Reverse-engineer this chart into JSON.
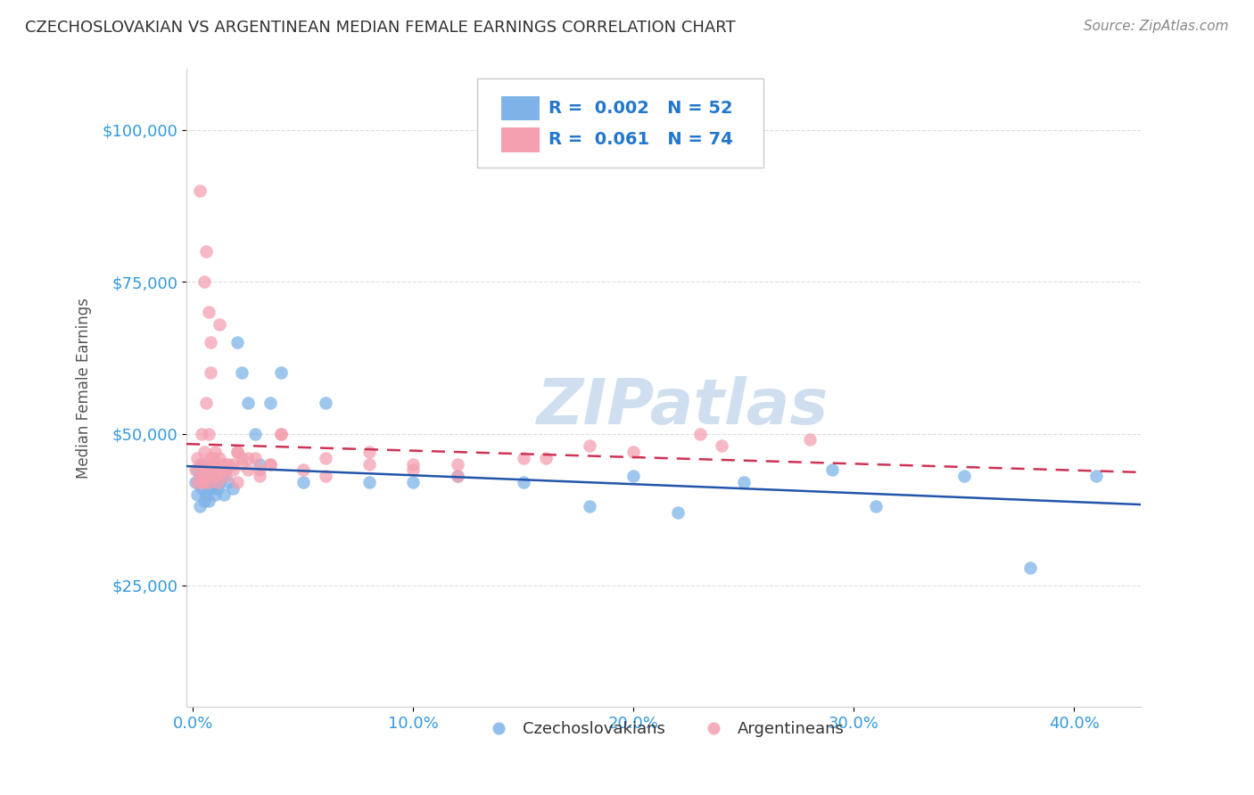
{
  "title": "CZECHOSLOVAKIAN VS ARGENTINEAN MEDIAN FEMALE EARNINGS CORRELATION CHART",
  "source": "Source: ZipAtlas.com",
  "ylabel": "Median Female Earnings",
  "ytick_labels": [
    "$25,000",
    "$50,000",
    "$75,000",
    "$100,000"
  ],
  "ytick_vals": [
    25000,
    50000,
    75000,
    100000
  ],
  "xlabel_ticks": [
    "0.0%",
    "10.0%",
    "20.0%",
    "30.0%",
    "40.0%"
  ],
  "xlabel_vals": [
    0.0,
    0.1,
    0.2,
    0.3,
    0.4
  ],
  "ylim": [
    5000,
    110000
  ],
  "xlim": [
    -0.003,
    0.43
  ],
  "legend1_r": "0.002",
  "legend1_n": "52",
  "legend2_r": "0.061",
  "legend2_n": "74",
  "blue_color": "#7fb3e8",
  "pink_color": "#f4a0b0",
  "blue_line_color": "#2255aa",
  "pink_line_color": "#cc3355",
  "title_color": "#333333",
  "axis_label_color": "#555555",
  "tick_color": "#3399dd",
  "watermark": "ZIPatlas",
  "watermark_color": "#d0dff0",
  "background_color": "#ffffff",
  "grid_color": "#dddddd",
  "legend_color": "#2277cc",
  "czechs_x": [
    0.001,
    0.002,
    0.002,
    0.003,
    0.003,
    0.004,
    0.004,
    0.005,
    0.005,
    0.005,
    0.006,
    0.006,
    0.006,
    0.007,
    0.007,
    0.007,
    0.008,
    0.008,
    0.009,
    0.009,
    0.01,
    0.01,
    0.011,
    0.011,
    0.012,
    0.013,
    0.014,
    0.015,
    0.016,
    0.018,
    0.02,
    0.022,
    0.025,
    0.028,
    0.03,
    0.035,
    0.04,
    0.05,
    0.06,
    0.08,
    0.1,
    0.12,
    0.15,
    0.18,
    0.2,
    0.22,
    0.25,
    0.29,
    0.31,
    0.35,
    0.38,
    0.41
  ],
  "czechs_y": [
    42000,
    44000,
    40000,
    43000,
    38000,
    45000,
    41000,
    42000,
    39000,
    43000,
    44000,
    40000,
    42000,
    41000,
    43000,
    39000,
    42000,
    44000,
    41000,
    43000,
    42000,
    40000,
    44000,
    41000,
    42000,
    43000,
    40000,
    44000,
    42000,
    41000,
    65000,
    60000,
    55000,
    50000,
    45000,
    55000,
    60000,
    42000,
    55000,
    42000,
    42000,
    43000,
    42000,
    38000,
    43000,
    37000,
    42000,
    44000,
    38000,
    43000,
    28000,
    43000
  ],
  "args_x": [
    0.001,
    0.002,
    0.002,
    0.003,
    0.003,
    0.004,
    0.004,
    0.005,
    0.005,
    0.005,
    0.006,
    0.006,
    0.006,
    0.007,
    0.007,
    0.007,
    0.008,
    0.008,
    0.009,
    0.009,
    0.01,
    0.01,
    0.011,
    0.011,
    0.012,
    0.013,
    0.014,
    0.015,
    0.016,
    0.018,
    0.02,
    0.022,
    0.025,
    0.028,
    0.03,
    0.035,
    0.04,
    0.05,
    0.06,
    0.08,
    0.1,
    0.12,
    0.02,
    0.012,
    0.008,
    0.005,
    0.006,
    0.007,
    0.009,
    0.01,
    0.015,
    0.02,
    0.025,
    0.03,
    0.035,
    0.04,
    0.06,
    0.08,
    0.12,
    0.16,
    0.2,
    0.24,
    0.28,
    0.022,
    0.018,
    0.013,
    0.01,
    0.008,
    0.006,
    0.004,
    0.23,
    0.18,
    0.15,
    0.1
  ],
  "args_y": [
    44000,
    46000,
    42000,
    45000,
    90000,
    43000,
    50000,
    44000,
    42000,
    47000,
    80000,
    43000,
    45000,
    70000,
    44000,
    42000,
    65000,
    46000,
    44000,
    45000,
    43000,
    47000,
    44000,
    42000,
    46000,
    45000,
    44000,
    43000,
    45000,
    44000,
    47000,
    45000,
    44000,
    46000,
    43000,
    45000,
    50000,
    44000,
    43000,
    45000,
    44000,
    43000,
    42000,
    68000,
    60000,
    75000,
    55000,
    50000,
    46000,
    44000,
    45000,
    47000,
    46000,
    44000,
    45000,
    50000,
    46000,
    47000,
    45000,
    46000,
    47000,
    48000,
    49000,
    46000,
    45000,
    44000,
    43000,
    44000,
    43000,
    42000,
    50000,
    48000,
    46000,
    45000
  ]
}
